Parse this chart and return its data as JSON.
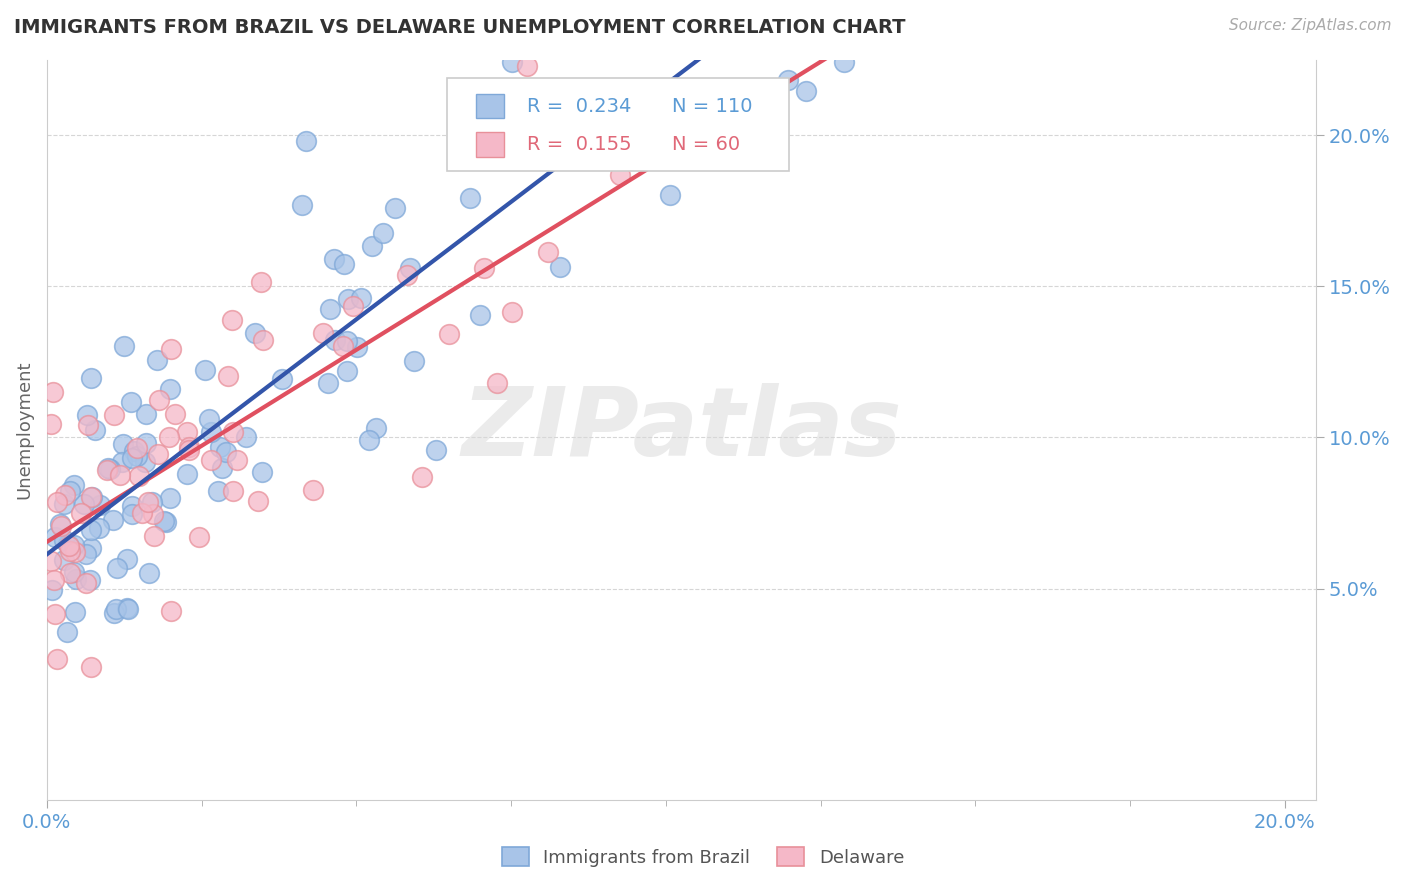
{
  "title": "IMMIGRANTS FROM BRAZIL VS DELAWARE UNEMPLOYMENT CORRELATION CHART",
  "source_text": "Source: ZipAtlas.com",
  "ylabel": "Unemployment",
  "xlim": [
    0.0,
    0.205
  ],
  "ylim": [
    -0.02,
    0.225
  ],
  "ytick_positions": [
    0.05,
    0.1,
    0.15,
    0.2
  ],
  "ytick_labels": [
    "5.0%",
    "10.0%",
    "15.0%",
    "20.0%"
  ],
  "blue_R": 0.234,
  "blue_N": 110,
  "pink_R": 0.155,
  "pink_N": 60,
  "blue_color": "#a8c4e8",
  "pink_color": "#f5b8c8",
  "blue_edge_color": "#7fa8d8",
  "pink_edge_color": "#e8909a",
  "blue_line_color": "#3355aa",
  "pink_line_color": "#e05060",
  "background_color": "#ffffff",
  "grid_color": "#cccccc",
  "title_color": "#333333",
  "axis_label_color": "#5b9bd5",
  "pink_text_color": "#e06878",
  "watermark_text": "ZIPatlas",
  "blue_seed": 42,
  "pink_seed": 123
}
